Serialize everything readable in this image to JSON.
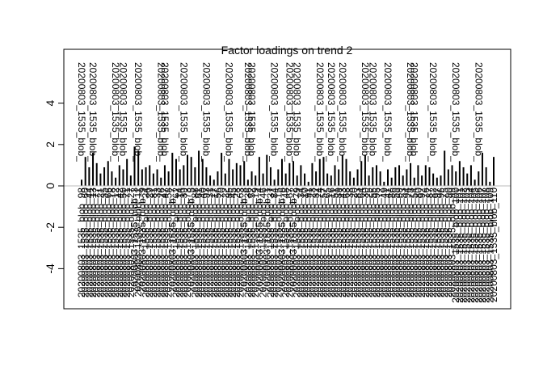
{
  "chart_data": {
    "type": "bar",
    "title": "Factor loadings on trend 2",
    "xlabel": "",
    "ylabel": "",
    "ylim": [
      -6,
      6
    ],
    "yticks": [
      -4,
      -2,
      0,
      2,
      4
    ],
    "ytick_labels": [
      "-4",
      "-2",
      "0",
      "2",
      "4"
    ],
    "baseline": 0,
    "grid": false,
    "legend": "none",
    "label_text": {
      "positive": "20200803_1535_blob_",
      "negative": "20200803_1535_blob_"
    },
    "values": [
      0.3,
      1.4,
      0.9,
      1.6,
      1.1,
      0.6,
      0.9,
      1.2,
      0.7,
      0.4,
      1.0,
      0.8,
      1.3,
      0.5,
      1.9,
      1.7,
      0.8,
      0.9,
      1.0,
      0.6,
      0.8,
      0.4,
      1.0,
      0.7,
      1.6,
      1.3,
      0.8,
      1.0,
      1.5,
      1.4,
      0.9,
      1.7,
      1.3,
      0.9,
      0.5,
      0.3,
      0.7,
      1.6,
      0.6,
      1.3,
      0.8,
      1.1,
      1.0,
      1.2,
      0.3,
      0.7,
      0.5,
      1.4,
      0.6,
      1.5,
      0.9,
      0.3,
      0.8,
      1.3,
      0.6,
      1.1,
      1.2,
      0.5,
      1.0,
      0.6,
      0.2,
      1.1,
      0.7,
      1.3,
      1.4,
      0.6,
      0.5,
      1.0,
      0.8,
      1.5,
      1.3,
      0.7,
      0.4,
      0.8,
      1.2,
      1.5,
      0.5,
      0.9,
      1.0,
      0.7,
      0.2,
      0.8,
      0.4,
      0.9,
      1.0,
      0.5,
      0.8,
      1.1,
      0.4,
      1.0,
      0.5,
      1.0,
      0.9,
      0.6,
      0.4,
      0.5,
      1.7,
      0.8,
      1.0,
      0.7,
      1.2,
      0.9,
      0.6,
      1.0,
      0.3,
      0.7,
      1.6,
      0.9,
      0.2,
      1.4
    ],
    "categories": [
      "20200803_1535_blob_98",
      "20200803_1535_blob_60",
      "20200803_1535_blob_44",
      "20200803_1535_blob_13",
      "20200803_1535_blob_77",
      "20200803_1535_blob_21",
      "20200803_1535_blob_35",
      "20200803_1535_blob_66",
      "20200803_1535_blob_18",
      "20200803_1535_blob_12",
      "20200803_1535_blob_42",
      "20200803_1535_blob_50",
      "20200803_1535_blob_71",
      "20200803_1535_blob_27",
      "20200803_1535_blob_3",
      "20200803_1535_blob_11",
      "20200803_1535_blob_9",
      "20200803_1535_blob_24",
      "20200803_1535_blob_29",
      "20200803_1535_blob_81",
      "20200803_1535_blob_33",
      "20200803_1535_blob_26",
      "20200803_1535_blob_47",
      "20200803_1535_blob_58",
      "20200803_1535_blob_7",
      "20200803_1535_blob_62",
      "20200803_1535_blob_14",
      "20200803_1535_blob_39",
      "20200803_1535_blob_73",
      "20200803_1535_blob_5",
      "20200803_1535_blob_88",
      "20200803_1535_blob_61",
      "20200803_1535_blob_40",
      "20200803_1535_blob_93",
      "20200803_1535_blob_31",
      "20200803_1535_blob_17",
      "20200803_1535_blob_56",
      "20200803_1535_blob_70",
      "20200803_1535_blob_22",
      "20200803_1535_blob_85",
      "20200803_1535_blob_45",
      "20200803_1535_blob_28",
      "20200803_1535_blob_63",
      "20200803_1535_blob_8",
      "20200803_1535_blob_36",
      "20200803_1535_blob_52",
      "20200803_1535_blob_19",
      "20200803_1535_blob_4",
      "20200803_1535_blob_46",
      "20200803_1535_blob_1",
      "20200803_1535_blob_37",
      "20200803_1535_blob_84",
      "20200803_1535_blob_15",
      "20200803_1535_blob_6",
      "20200803_1535_blob_48",
      "20200803_1535_blob_67",
      "20200803_1535_blob_2",
      "20200803_1535_blob_79",
      "20200803_1535_blob_34",
      "20200803_1535_blob_10",
      "20200803_1535_blob_91",
      "20200803_1535_blob_23",
      "20200803_1535_blob_32",
      "20200803_1535_blob_74",
      "20200803_1535_blob_57",
      "20200803_1535_blob_65",
      "20200803_1535_blob_16",
      "20200803_1535_blob_51",
      "20200803_1535_blob_89",
      "20200803_1535_blob_43",
      "20200803_1535_blob_68",
      "20200803_1535_blob_38",
      "20200803_1535_blob_20",
      "20200803_1535_blob_83",
      "20200803_1535_blob_64",
      "20200803_1535_blob_30",
      "20200803_1535_blob_25",
      "20200803_1535_blob_55",
      "20200803_1535_blob_95",
      "20200803_1535_blob_72",
      "20200803_1535_blob_49",
      "20200803_1535_blob_41",
      "20200803_1535_blob_86",
      "20200803_1535_blob_59",
      "20200803_1535_blob_69",
      "20200803_1535_blob_53",
      "20200803_1535_blob_94",
      "20200803_1535_blob_78",
      "20200803_1535_blob_54",
      "20200803_1535_blob_80",
      "20200803_1535_blob_92",
      "20200803_1535_blob_76",
      "20200803_1535_blob_87",
      "20200803_1535_blob_82",
      "20200803_1535_blob_97",
      "20200803_1535_blob_96",
      "20200803_1535_blob_75",
      "20200803_1535_blob_90",
      "20200803_1535_blob_99",
      "20200803_1535_blob_100",
      "20200803_1535_blob_101",
      "20200803_1535_blob_102",
      "20200803_1535_blob_103",
      "20200803_1535_blob_104",
      "20200803_1535_blob_105",
      "20200803_1535_blob_106",
      "20200803_1535_blob_107",
      "20200803_1535_blob_108",
      "20200803_1535_blob_109",
      "20200803_1535_blob_110"
    ]
  }
}
